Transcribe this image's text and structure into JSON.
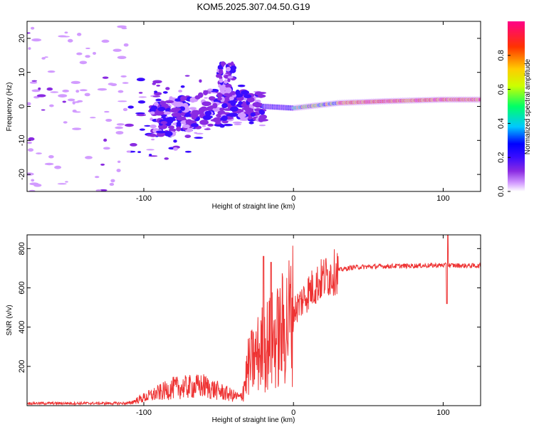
{
  "title": "KOM5.2025.307.04.50.G19",
  "chart_data": [
    {
      "type": "heatmap",
      "xlabel": "Height of straight line (km)",
      "ylabel": "Frequency (Hz)",
      "xlim": [
        -178,
        125
      ],
      "ylim": [
        -25,
        25
      ],
      "xticks": [
        -100,
        0,
        100
      ],
      "yticks": [
        -20,
        -10,
        0,
        10,
        20
      ],
      "colorbar": {
        "label": "Normalized spectral amplitude",
        "range": [
          0,
          1
        ],
        "ticks": [
          0.0,
          0.2,
          0.4,
          0.6,
          0.8
        ],
        "tick_labels": [
          "0.0",
          "0.2",
          "0.4",
          "0.6",
          "0.8"
        ],
        "colormap": [
          "#ffffff",
          "#d29bff",
          "#8a2be2",
          "#3a0cff",
          "#0000ff",
          "#00c8ff",
          "#00ff66",
          "#ccff00",
          "#ffcc00",
          "#ff3300",
          "#ff0088"
        ]
      },
      "trace": {
        "description_points_km_hz": [
          [
            -90,
            -4
          ],
          [
            -70,
            -2
          ],
          [
            -50,
            0
          ],
          [
            -30,
            0.5
          ],
          [
            -20,
            0
          ],
          [
            0,
            -0.5
          ],
          [
            10,
            0
          ],
          [
            30,
            1
          ],
          [
            60,
            1.5
          ],
          [
            100,
            2
          ],
          [
            125,
            2
          ]
        ]
      }
    },
    {
      "type": "line",
      "xlabel": "Height of straight line (km)",
      "ylabel": "SNR (v/v)",
      "xlim": [
        -178,
        125
      ],
      "ylim": [
        0,
        870
      ],
      "xticks": [
        -100,
        0,
        100
      ],
      "yticks": [
        200,
        400,
        600,
        800
      ],
      "series": [
        {
          "name": "SNR",
          "color": "#ee3333",
          "envelope_km_snr": [
            [
              -178,
              12
            ],
            [
              -110,
              12
            ],
            [
              -100,
              40
            ],
            [
              -80,
              90
            ],
            [
              -60,
              100
            ],
            [
              -40,
              50
            ],
            [
              -35,
              40
            ],
            [
              -30,
              200
            ],
            [
              -20,
              300
            ],
            [
              -10,
              350
            ],
            [
              0,
              480
            ],
            [
              10,
              580
            ],
            [
              20,
              650
            ],
            [
              30,
              690
            ],
            [
              40,
              705
            ],
            [
              60,
              710
            ],
            [
              100,
              715
            ],
            [
              125,
              712
            ]
          ]
        }
      ]
    }
  ]
}
